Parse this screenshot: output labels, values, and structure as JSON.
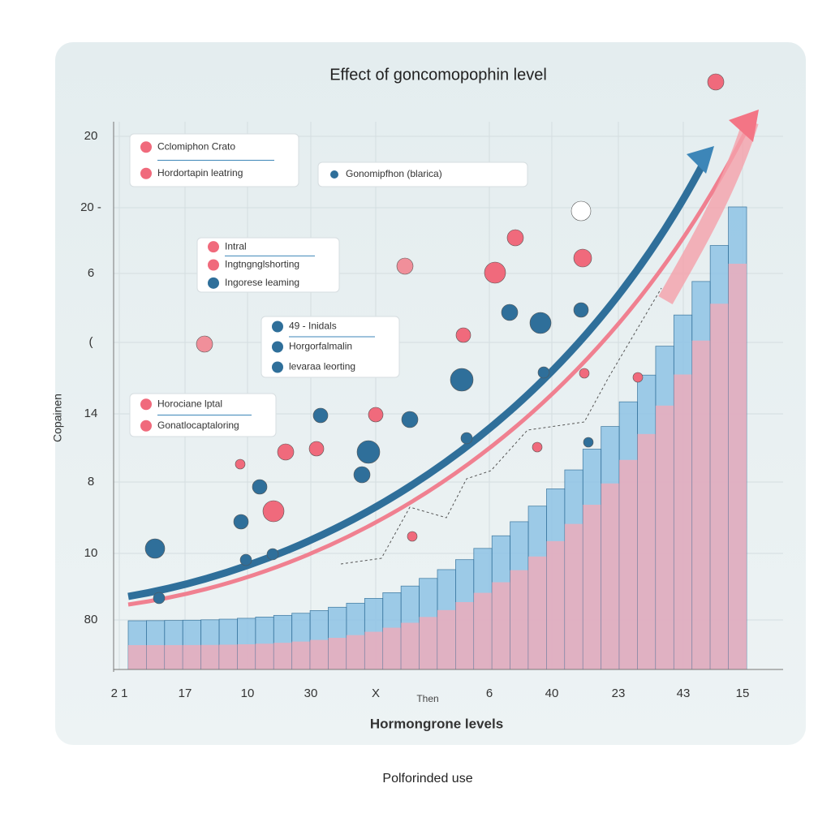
{
  "header": {
    "title": "Effect  of  goncomopophin level"
  },
  "axes": {
    "y_label": "Copainen",
    "y_ticks": [
      "20",
      "20 -",
      "6",
      "(",
      "14",
      "8",
      "10",
      "80"
    ],
    "x_ticks": [
      "2 1",
      "17",
      "10",
      "30",
      "X",
      "6",
      "40",
      "23",
      "43",
      "15"
    ],
    "x_note": "Then",
    "x_label": "Hormongrone levels"
  },
  "legends": [
    {
      "items": [
        "Cclomiphon Crato",
        "Hordortapin leatring"
      ]
    },
    {
      "items": [
        "Gonomipfhon (blarica)"
      ]
    },
    {
      "items": [
        "Intral",
        "Ingtngnglshorting",
        "Ingorese leaming"
      ]
    },
    {
      "items": [
        "49 - Inidals",
        "Horgorfalmalin",
        "levaraa leorting"
      ]
    },
    {
      "items": [
        "Horociane lptal",
        "Gonatlocaptaloring"
      ]
    }
  ],
  "footer": "Polforinded use"
}
